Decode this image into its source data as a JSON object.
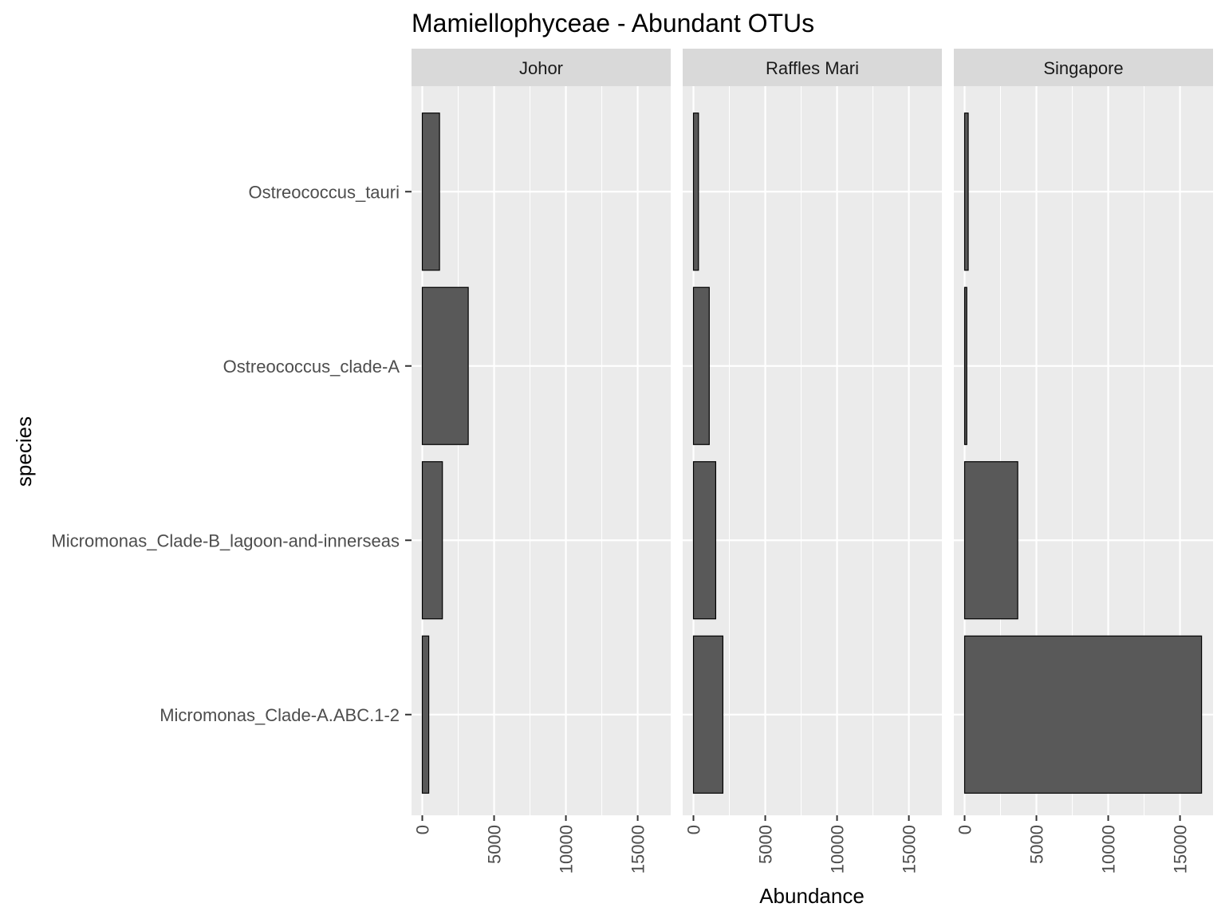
{
  "chart_data": {
    "type": "bar",
    "orientation": "horizontal",
    "title": "Mamiellophyceae - Abundant OTUs",
    "xlabel": "Abundance",
    "ylabel": "species",
    "categories": [
      "Ostreococcus_tauri",
      "Ostreococcus_clade-A",
      "Micromonas_Clade-B_lagoon-and-innerseas",
      "Micromonas_Clade-A.ABC.1-2"
    ],
    "facets": [
      {
        "name": "Johor",
        "values": [
          1200,
          3200,
          1400,
          450
        ]
      },
      {
        "name": "Raffles Mari",
        "values": [
          350,
          1100,
          1550,
          2050
        ]
      },
      {
        "name": "Singapore",
        "values": [
          250,
          150,
          3700,
          16500
        ]
      }
    ],
    "xlim": [
      -750,
      17300
    ],
    "xticks": [
      0,
      5000,
      10000,
      15000
    ],
    "x_tick_labels": [
      "0",
      "5000",
      "10000",
      "15000"
    ],
    "grid": true,
    "colors": {
      "bar_fill": "#595959",
      "bar_stroke": "#000000",
      "panel_bg": "#ebebeb",
      "strip_bg": "#d9d9d9",
      "grid": "#ffffff"
    }
  }
}
